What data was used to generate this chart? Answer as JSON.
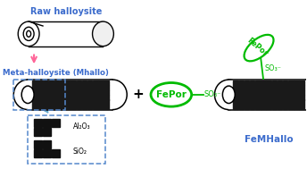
{
  "background_color": "#ffffff",
  "blue_color": "#3b6bcc",
  "green_color": "#00bb00",
  "pink_color": "#ff6699",
  "light_blue": "#66aacc",
  "dashed_blue": "#5588cc",
  "text_raw_halloysite": "Raw halloysite",
  "text_meta_halloysite": "Meta-halloysite (Mhallo)",
  "text_fepor": "FePor",
  "text_so3": "SO₃⁻",
  "text_femhallo": "FeMHallo",
  "text_al2o3": "Al₂O₃",
  "text_sio2": "SiO₂",
  "figsize": [
    3.44,
    1.89
  ],
  "dpi": 100
}
